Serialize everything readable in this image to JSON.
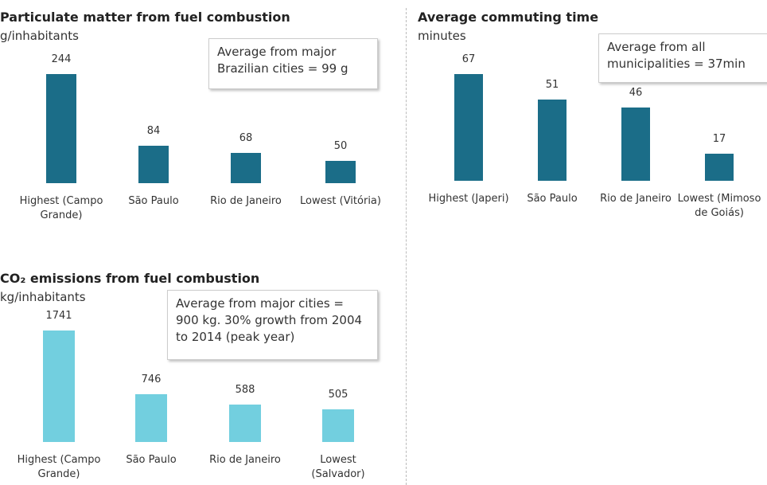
{
  "chart_data": [
    {
      "type": "bar",
      "title": "Particulate matter from fuel combustion",
      "subtitle": "g/inhabitants",
      "annotation": "Average from major Brazilian cities = 99 g",
      "categories": [
        "Highest (Campo Grande)",
        "São Paulo",
        "Rio de Janeiro",
        "Lowest (Vitória)"
      ],
      "values": [
        244,
        84,
        68,
        50
      ],
      "color": "#1b6d88"
    },
    {
      "type": "bar",
      "title": "Average commuting time",
      "subtitle": "minutes",
      "annotation": "Average from all municipalities = 37min",
      "categories": [
        "Highest (Japeri)",
        "São Paulo",
        "Rio de Janeiro",
        "Lowest (Mimoso de Goiás)"
      ],
      "values": [
        67,
        51,
        46,
        17
      ],
      "color": "#1b6d88"
    },
    {
      "type": "bar",
      "title": "CO₂ emissions from fuel combustion",
      "subtitle": "kg/inhabitants",
      "annotation": "Average from major cities = 900 kg. 30% growth from 2004 to 2014 (peak year)",
      "categories": [
        "Highest (Campo Grande)",
        "São Paulo",
        "Rio de Janeiro",
        "Lowest (Salvador)"
      ],
      "values": [
        1741,
        746,
        588,
        505
      ],
      "color": "#72cfdf"
    }
  ]
}
